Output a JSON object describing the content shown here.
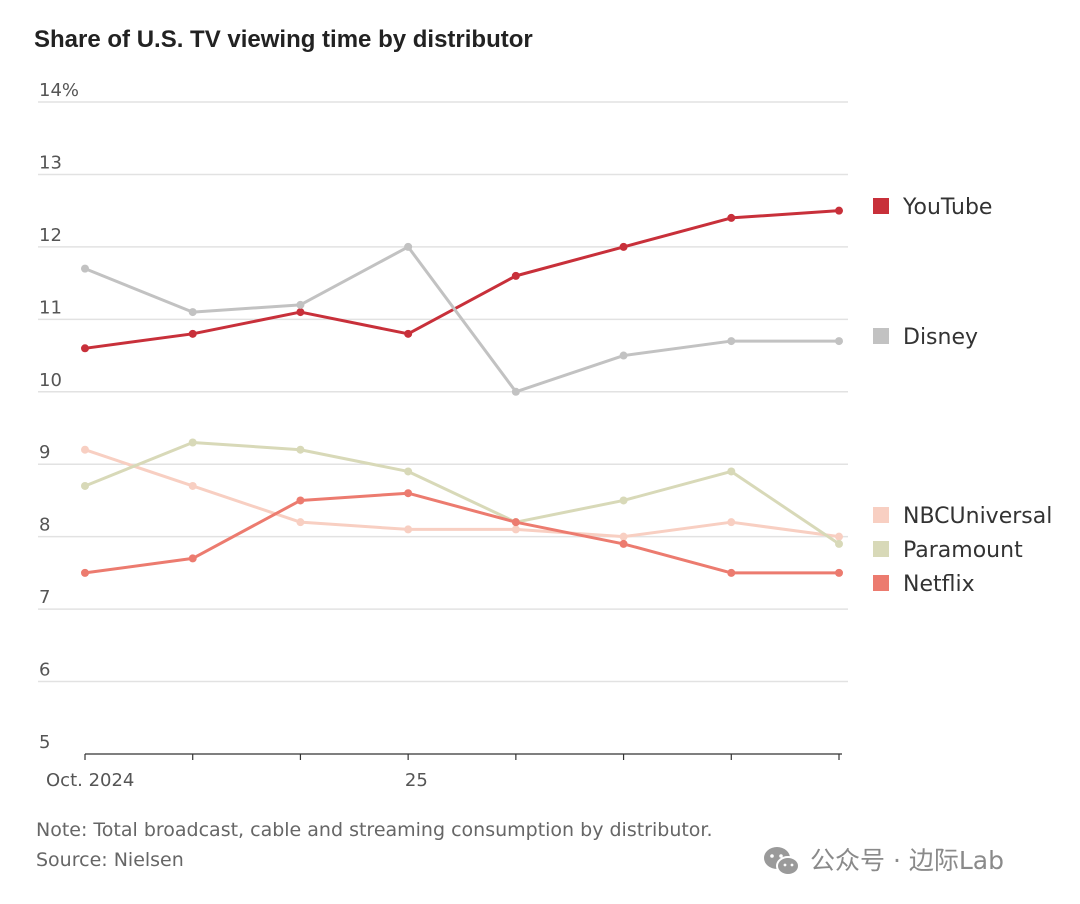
{
  "chart_data": {
    "type": "line",
    "title": "Share of U.S. TV viewing time by distributor",
    "xlabel": "",
    "ylabel": "",
    "ylim": [
      5,
      14
    ],
    "y_ticks": [
      "5",
      "6",
      "7",
      "8",
      "9",
      "10",
      "11",
      "12",
      "13",
      "14%"
    ],
    "x": [
      "2024-10",
      "2024-11",
      "2024-12",
      "2025-01",
      "2025-02",
      "2025-03",
      "2025-04",
      "2025-05"
    ],
    "x_tick_labels": [
      {
        "index": 0,
        "label": "Oct. 2024"
      },
      {
        "index": 3,
        "label": " 25"
      }
    ],
    "grid": true,
    "legend": "right",
    "series": [
      {
        "name": "YouTube",
        "color": "#c8303a",
        "values": [
          10.6,
          10.8,
          11.1,
          10.8,
          11.6,
          12.0,
          12.4,
          12.5
        ]
      },
      {
        "name": "Disney",
        "color": "#c2c2c2",
        "values": [
          11.7,
          11.1,
          11.2,
          12.0,
          10.0,
          10.5,
          10.7,
          10.7
        ]
      },
      {
        "name": "NBCUniversal",
        "color": "#f8cfc2",
        "values": [
          9.2,
          8.7,
          8.2,
          8.1,
          8.1,
          8.0,
          8.2,
          8.0
        ]
      },
      {
        "name": "Paramount",
        "color": "#d8d9b8",
        "values": [
          8.7,
          9.3,
          9.2,
          8.9,
          8.2,
          8.5,
          8.9,
          7.9
        ]
      },
      {
        "name": "Netflix",
        "color": "#ec7b6f",
        "values": [
          7.5,
          7.7,
          8.5,
          8.6,
          8.2,
          7.9,
          7.5,
          7.5
        ]
      }
    ],
    "note": "Note: Total broadcast, cable and streaming consumption by distributor.",
    "source": "Source: Nielsen"
  },
  "watermark": {
    "text": "公众号 · 边际Lab",
    "icon": "wechat-icon"
  }
}
